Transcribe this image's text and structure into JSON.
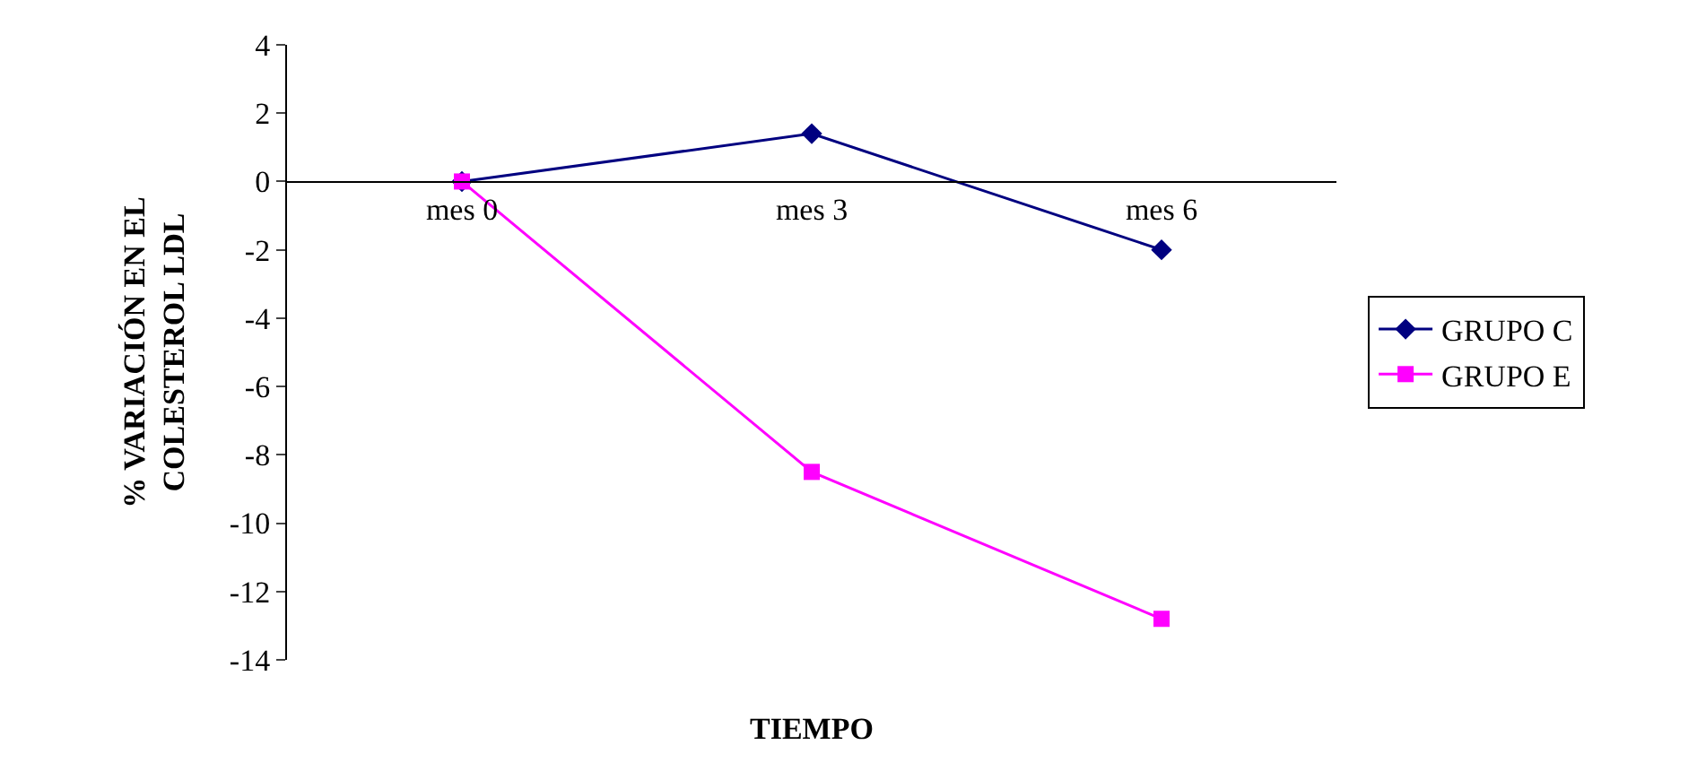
{
  "chart_data": {
    "type": "line",
    "xlabel": "TIEMPO",
    "ylabel": "% VARIACIÓN EN EL\nCOLESTEROL LDL",
    "categories": [
      "mes 0",
      "mes 3",
      "mes 6"
    ],
    "series": [
      {
        "name": "GRUPO C",
        "color": "#000080",
        "values": [
          0,
          1.4,
          -2
        ],
        "marker": "diamond"
      },
      {
        "name": "GRUPO E",
        "color": "#ff00ff",
        "values": [
          0,
          -8.5,
          -12.8
        ],
        "marker": "square"
      }
    ],
    "ylim": [
      -14,
      4
    ],
    "yticks": [
      -14,
      -12,
      -10,
      -8,
      -6,
      -4,
      -2,
      0,
      2,
      4
    ],
    "legend": "right",
    "line_style": "solid"
  }
}
